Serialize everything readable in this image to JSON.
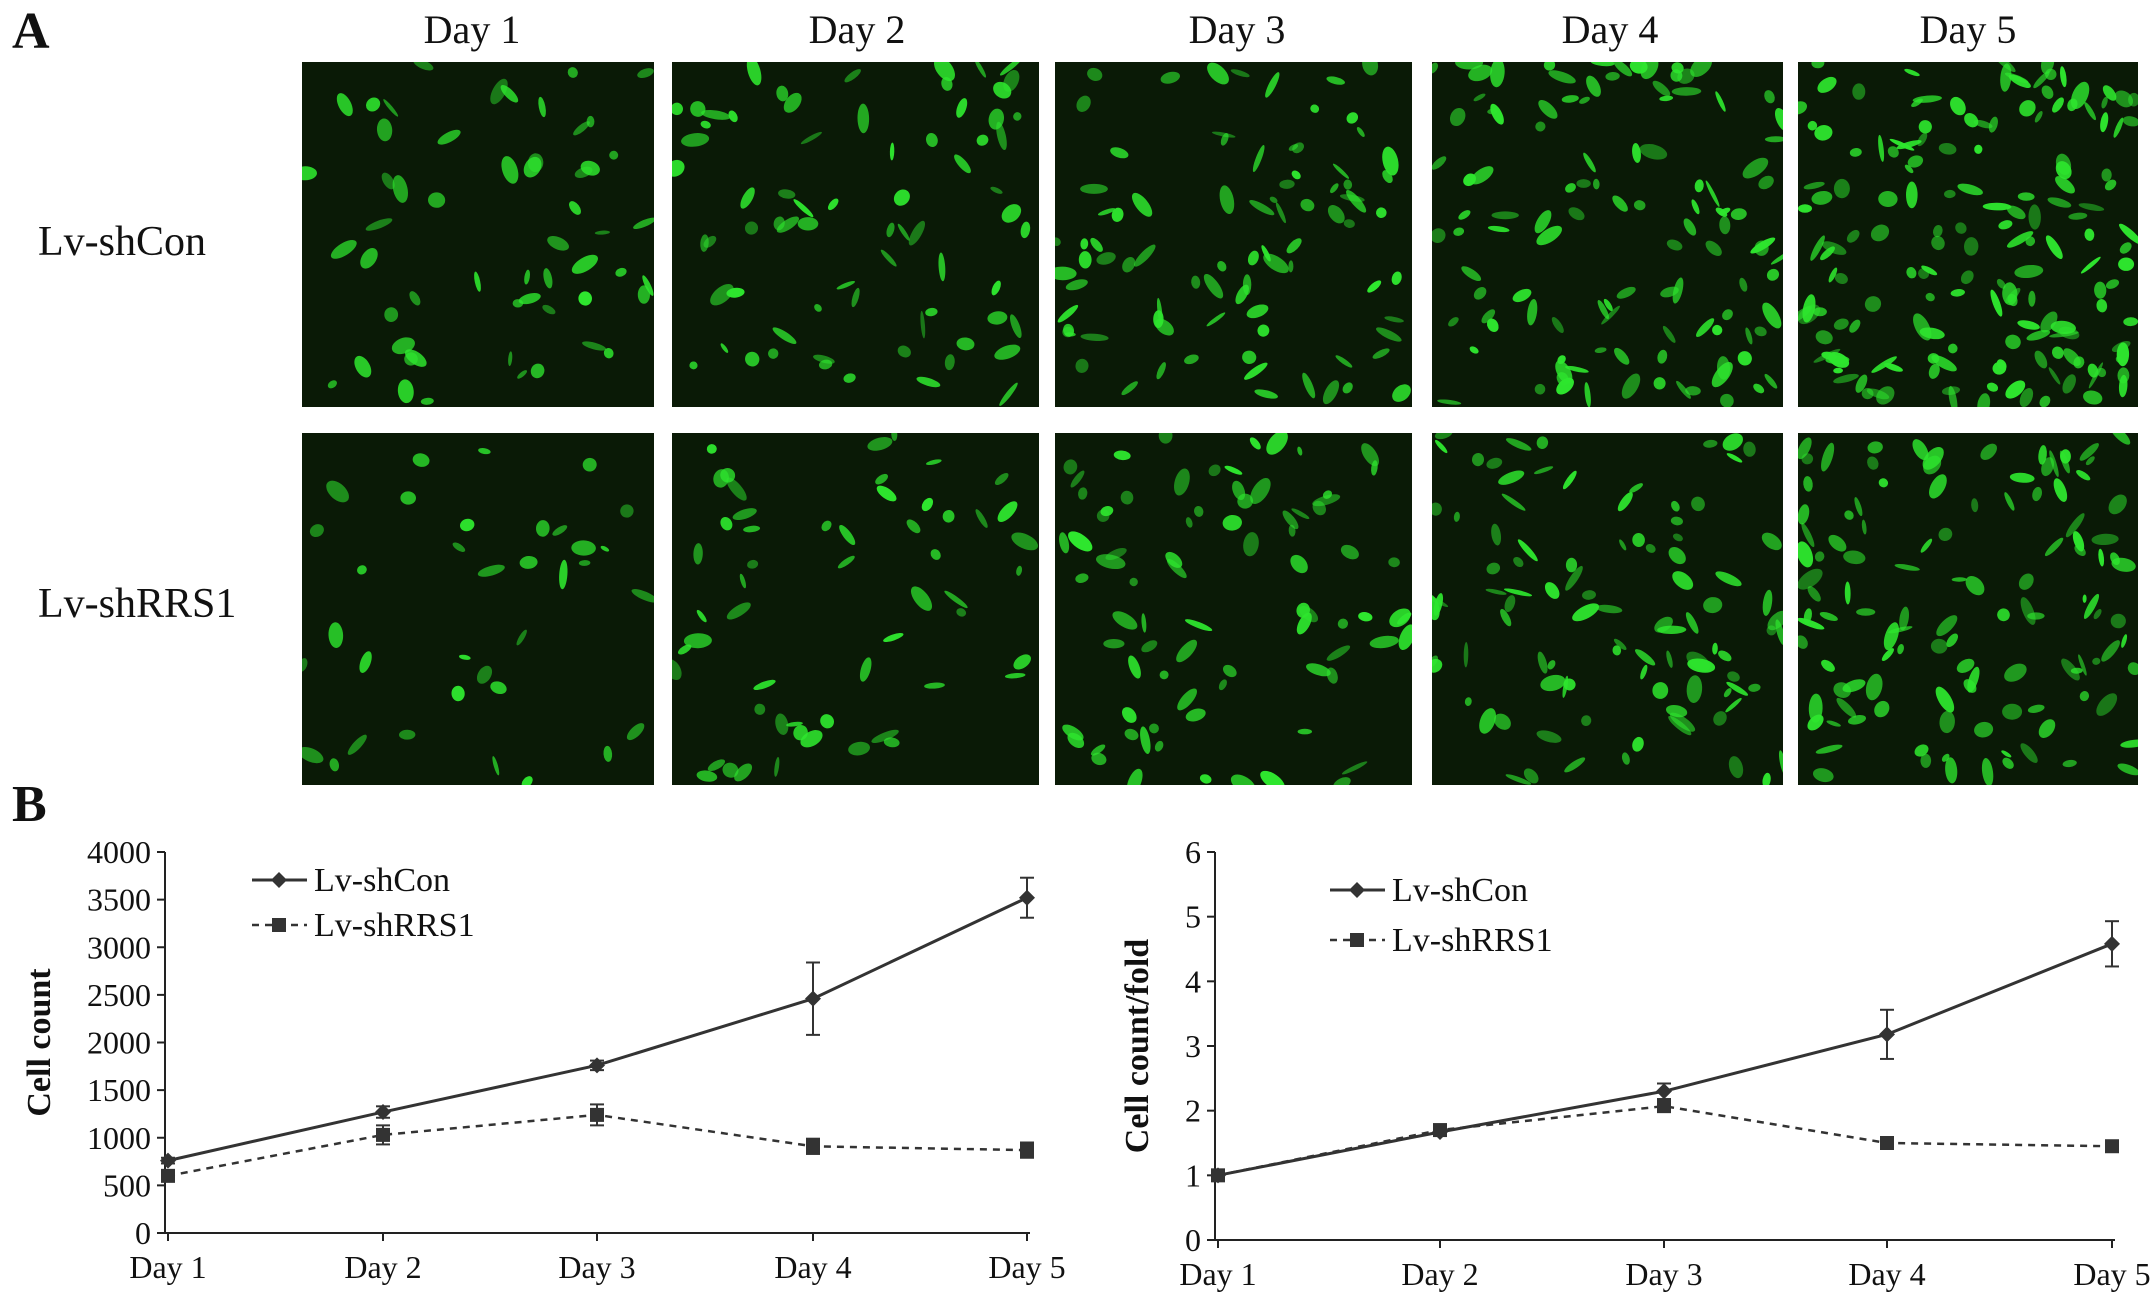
{
  "panels": {
    "a_letter": "A",
    "b_letter": "B",
    "rows": [
      "Lv-shCon",
      "Lv-shRRS1"
    ],
    "days": [
      "Day 1",
      "Day 2",
      "Day 3",
      "Day 4",
      "Day 5"
    ],
    "image_color": "#2ee62e",
    "image_background": "#0a1a06"
  },
  "chart_data": [
    {
      "type": "line",
      "title": "",
      "xlabel": "",
      "ylabel": "Cell count",
      "categories": [
        "Day 1",
        "Day 2",
        "Day 3",
        "Day 4",
        "Day 5"
      ],
      "ylim": [
        0,
        4000
      ],
      "yticks": [
        0,
        500,
        1000,
        1500,
        2000,
        2500,
        3000,
        3500,
        4000
      ],
      "legend": "top-left",
      "grid": false,
      "series": [
        {
          "name": "Lv-shCon",
          "values": [
            760,
            1270,
            1760,
            2460,
            3520
          ],
          "errors": [
            30,
            60,
            50,
            380,
            210
          ],
          "style": "solid",
          "marker": "diamond"
        },
        {
          "name": "Lv-shRRS1",
          "values": [
            600,
            1030,
            1240,
            910,
            870
          ],
          "errors": [
            30,
            100,
            110,
            80,
            80
          ],
          "style": "dashed",
          "marker": "square"
        }
      ]
    },
    {
      "type": "line",
      "title": "",
      "xlabel": "",
      "ylabel": "Cell count/fold",
      "categories": [
        "Day 1",
        "Day 2",
        "Day 3",
        "Day 4",
        "Day 5"
      ],
      "ylim": [
        0,
        6
      ],
      "yticks": [
        0,
        1,
        2,
        3,
        4,
        5,
        6
      ],
      "legend": "top-left",
      "grid": false,
      "series": [
        {
          "name": "Lv-shCon",
          "values": [
            1.0,
            1.67,
            2.3,
            3.18,
            4.58
          ],
          "errors": [
            0.02,
            0.06,
            0.12,
            0.38,
            0.35
          ],
          "style": "solid",
          "marker": "diamond"
        },
        {
          "name": "Lv-shRRS1",
          "values": [
            1.0,
            1.7,
            2.07,
            1.5,
            1.45
          ],
          "errors": [
            0.02,
            0.05,
            0.08,
            0.05,
            0.05
          ],
          "style": "dashed",
          "marker": "square"
        }
      ]
    }
  ]
}
